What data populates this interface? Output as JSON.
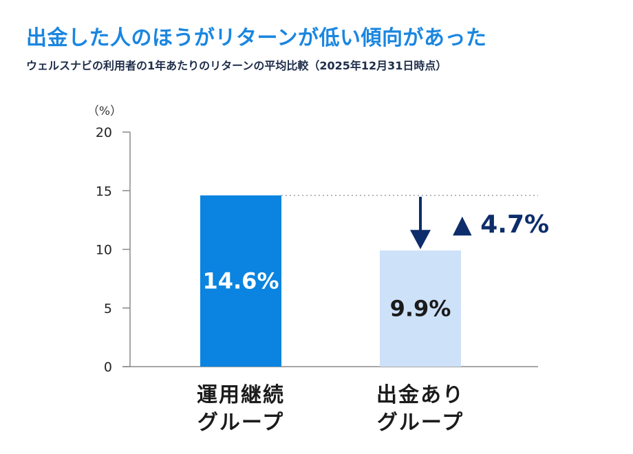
{
  "title": "出金した人のほうがリターンが低い傾向があった",
  "subtitle": "ウェルスナビの利用者の1年あたりのリターンの平均比較（2025年12月31日時点）",
  "colors": {
    "title": "#1a86e0",
    "subtitle": "#1f2d4a",
    "bar_primary": "#0a84e0",
    "bar_secondary": "#cde1f8",
    "bar_label_light": "#ffffff",
    "bar_label_dark": "#1b1b1b",
    "difference": "#0d2d6b",
    "axis": "#888888"
  },
  "chart_data": {
    "type": "bar",
    "categories": [
      [
        "運用継続",
        "グループ"
      ],
      [
        "出金あり",
        "グループ"
      ]
    ],
    "values": [
      14.6,
      9.9
    ],
    "data_labels": [
      "14.6%",
      "9.9%"
    ],
    "ylabel": "（%）",
    "ylim": [
      0,
      20
    ],
    "yticks": [
      0,
      5,
      10,
      15,
      20
    ],
    "grid": false,
    "annotation": {
      "text": "▲ 4.7%",
      "difference": 4.7,
      "style": "dotted reference line from first bar top with downward arrow to second bar"
    }
  }
}
